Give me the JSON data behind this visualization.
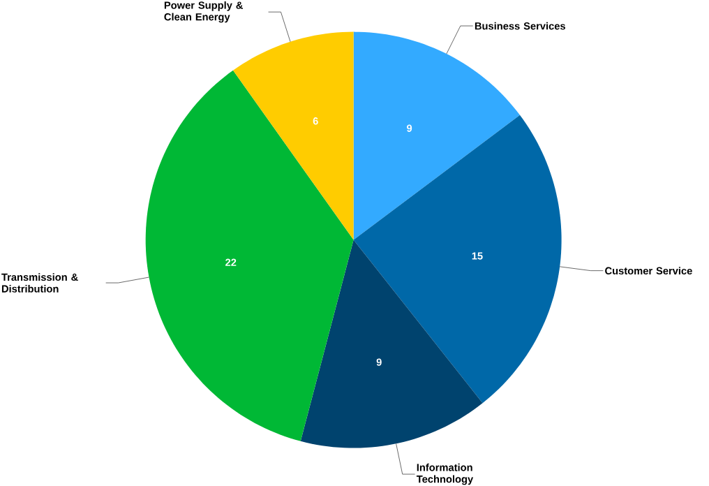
{
  "chart_data": {
    "type": "pie",
    "categories": [
      "Business Services",
      "Customer Service",
      "Information Technology",
      "Transmission & Distribution",
      "Power Supply & Clean Energy"
    ],
    "values": [
      9,
      15,
      9,
      22,
      6
    ],
    "colors": [
      "#33aaff",
      "#0068a8",
      "#00436e",
      "#00b835",
      "#ffcc00"
    ],
    "data_labels": true
  }
}
